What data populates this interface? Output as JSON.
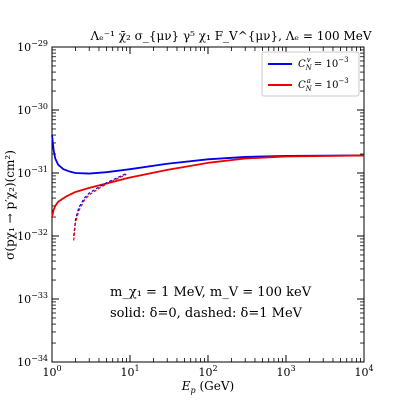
{
  "chart_data": {
    "type": "line",
    "title": {
      "part1": "Λₑ⁻¹ χ̄₂ σ_{μν} γ⁵ χ₁ F_V^{μν}",
      "part2": "Λₑ = 100 MeV"
    },
    "xlabel": "E_p (GeV)",
    "ylabel": "σ(pχ₁ → p′χ₂)(cm²)",
    "xscale": "log",
    "yscale": "log",
    "xlim": [
      1,
      10000
    ],
    "ylim": [
      1e-34,
      1e-29
    ],
    "x_ticks": [
      {
        "value": 1,
        "base": "10",
        "exp": "0"
      },
      {
        "value": 10,
        "base": "10",
        "exp": "1"
      },
      {
        "value": 100,
        "base": "10",
        "exp": "2"
      },
      {
        "value": 1000,
        "base": "10",
        "exp": "3"
      },
      {
        "value": 10000,
        "base": "10",
        "exp": "4"
      }
    ],
    "y_ticks": [
      {
        "value": 1e-34,
        "base": "10",
        "exp": "−34"
      },
      {
        "value": 1e-33,
        "base": "10",
        "exp": "−33"
      },
      {
        "value": 1e-32,
        "base": "10",
        "exp": "−32"
      },
      {
        "value": 1e-31,
        "base": "10",
        "exp": "−31"
      },
      {
        "value": 1e-30,
        "base": "10",
        "exp": "−30"
      },
      {
        "value": 1e-29,
        "base": "10",
        "exp": "−29"
      }
    ],
    "legend_position": "top-right",
    "series": [
      {
        "name": "C_N^v = 10^−3",
        "name_main": "C",
        "name_sub": "N",
        "name_sup": "v",
        "name_rest": " = 10",
        "name_exp": "−3",
        "color": "#0000ee",
        "style": "solid",
        "points": [
          [
            1.0,
            4e-31
          ],
          [
            1.05,
            2.3e-31
          ],
          [
            1.1,
            1.7e-31
          ],
          [
            1.2,
            1.35e-31
          ],
          [
            1.4,
            1.15e-31
          ],
          [
            1.7,
            1.05e-31
          ],
          [
            2.0,
            1e-31
          ],
          [
            3.0,
            9.8e-32
          ],
          [
            5.0,
            1.03e-31
          ],
          [
            10,
            1.15e-31
          ],
          [
            30,
            1.4e-31
          ],
          [
            100,
            1.65e-31
          ],
          [
            300,
            1.8e-31
          ],
          [
            1000,
            1.87e-31
          ],
          [
            10000,
            1.9e-31
          ]
        ]
      },
      {
        "name": "C_N^a = 10^−3",
        "name_main": "C",
        "name_sub": "N",
        "name_sup": "a",
        "name_rest": " = 10",
        "name_exp": "−3",
        "color": "#ee0000",
        "style": "solid",
        "points": [
          [
            1.0,
            2e-32
          ],
          [
            1.05,
            2.6e-32
          ],
          [
            1.1,
            3e-32
          ],
          [
            1.2,
            3.5e-32
          ],
          [
            1.5,
            4.2e-32
          ],
          [
            2.0,
            5e-32
          ],
          [
            3.0,
            5.8e-32
          ],
          [
            5.0,
            6.8e-32
          ],
          [
            10,
            8.5e-32
          ],
          [
            30,
            1.12e-31
          ],
          [
            100,
            1.45e-31
          ],
          [
            300,
            1.7e-31
          ],
          [
            1000,
            1.83e-31
          ],
          [
            10000,
            1.9e-31
          ]
        ]
      },
      {
        "name": "",
        "color": "#0000ee",
        "style": "dashed",
        "points": [
          [
            1.9,
            1e-32
          ],
          [
            2.0,
            1.8e-32
          ],
          [
            2.2,
            2.8e-32
          ],
          [
            2.6,
            4e-32
          ],
          [
            3.0,
            4.8e-32
          ],
          [
            4.0,
            6e-32
          ],
          [
            5.0,
            7e-32
          ],
          [
            7.0,
            8.5e-32
          ],
          [
            9.0,
            9.8e-32
          ]
        ]
      },
      {
        "name": "",
        "color": "#ee0000",
        "style": "dashed",
        "points": [
          [
            1.9,
            8.5e-33
          ],
          [
            2.0,
            1.6e-32
          ],
          [
            2.2,
            2.5e-32
          ],
          [
            2.6,
            3.7e-32
          ],
          [
            3.0,
            4.5e-32
          ],
          [
            4.0,
            5.7e-32
          ],
          [
            5.0,
            6.7e-32
          ],
          [
            7.0,
            8.2e-32
          ],
          [
            9.0,
            9.5e-32
          ]
        ]
      }
    ],
    "annotations": {
      "line1": "m_χ₁ = 1 MeV, m_V = 100 keV",
      "line2": "solid: δ=0, dashed: δ=1 MeV"
    }
  }
}
